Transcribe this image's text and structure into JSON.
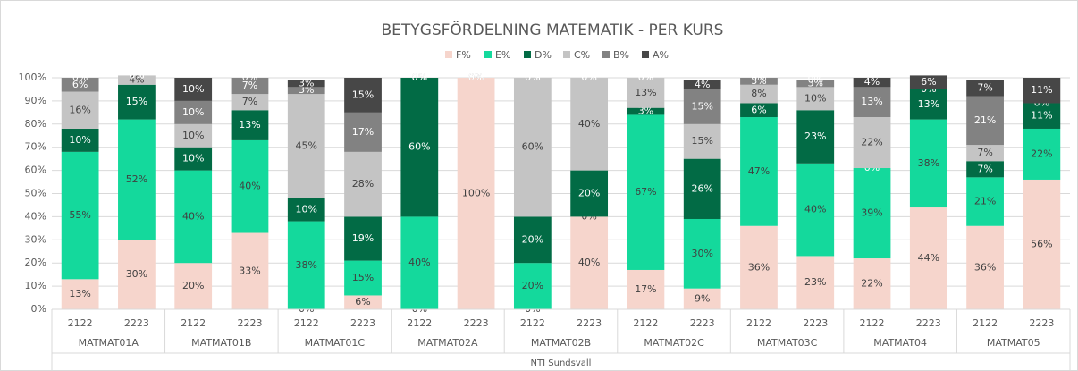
{
  "chart_data": {
    "type": "stacked_bar_100",
    "title": "BETYGSFÖRDELNING MATEMATIK - PER KURS",
    "categories": [
      "2122",
      "2223",
      "2122",
      "2223",
      "2122",
      "2223",
      "2122",
      "2223",
      "2122",
      "2223",
      "2122",
      "2223",
      "2122",
      "2223",
      "2122",
      "2223",
      "2122",
      "2223"
    ],
    "groups": [
      "MATMAT01A",
      "MATMAT01B",
      "MATMAT01C",
      "MATMAT02A",
      "MATMAT02B",
      "MATMAT02C",
      "MATMAT03C",
      "MATMAT04",
      "MATMAT05"
    ],
    "supergroup": "NTI Sundsvall",
    "ylim": [
      0,
      100
    ],
    "yticks": [
      {
        "value": 0,
        "label": "0%"
      },
      {
        "value": 10,
        "label": "10%"
      },
      {
        "value": 20,
        "label": "20%"
      },
      {
        "value": 30,
        "label": "30%"
      },
      {
        "value": 40,
        "label": "40%"
      },
      {
        "value": 50,
        "label": "50%"
      },
      {
        "value": 60,
        "label": "60%"
      },
      {
        "value": 70,
        "label": "70%"
      },
      {
        "value": 80,
        "label": "80%"
      },
      {
        "value": 90,
        "label": "90%"
      },
      {
        "value": 100,
        "label": "100%"
      }
    ],
    "grid": true,
    "legend": "top",
    "series": [
      {
        "name": "F%",
        "color": "#f6d5cc",
        "values": [
          13,
          30,
          20,
          33,
          0,
          6,
          0,
          100,
          0,
          40,
          17,
          9,
          36,
          23,
          22,
          44,
          36,
          56
        ],
        "value_labels": [
          "13%",
          "30%",
          "20%",
          "33%",
          "0%",
          "6%",
          "0%",
          "100%",
          "0%",
          "40%",
          "17%",
          "9%",
          "36%",
          "23%",
          "22%",
          "44%",
          "36%",
          "56%"
        ]
      },
      {
        "name": "E%",
        "color": "#14d99c",
        "values": [
          55,
          52,
          40,
          40,
          38,
          15,
          40,
          0,
          20,
          0,
          67,
          30,
          47,
          40,
          39,
          38,
          21,
          22
        ],
        "value_labels": [
          "55%",
          "52%",
          "40%",
          "40%",
          "38%",
          "15%",
          "40%",
          "0%",
          "20%",
          "0%",
          "67%",
          "30%",
          "47%",
          "40%",
          "39%",
          "38%",
          "21%",
          "22%"
        ]
      },
      {
        "name": "D%",
        "color": "#026b45",
        "values": [
          10,
          15,
          10,
          13,
          10,
          19,
          60,
          0,
          20,
          20,
          3,
          26,
          6,
          23,
          0,
          13,
          7,
          11
        ],
        "value_labels": [
          "10%",
          "15%",
          "10%",
          "13%",
          "10%",
          "19%",
          "60%",
          "0%",
          "20%",
          "20%",
          "3%",
          "26%",
          "6%",
          "23%",
          "0%",
          "13%",
          "7%",
          "11%"
        ]
      },
      {
        "name": "C%",
        "color": "#c4c4c4",
        "values": [
          16,
          4,
          10,
          7,
          45,
          28,
          0,
          0,
          60,
          40,
          13,
          15,
          8,
          10,
          22,
          0,
          7,
          0
        ],
        "value_labels": [
          "16%",
          "4%",
          "10%",
          "7%",
          "45%",
          "28%",
          "0%",
          "0%",
          "60%",
          "40%",
          "13%",
          "15%",
          "8%",
          "10%",
          "22%",
          "0%",
          "7%",
          "0%"
        ]
      },
      {
        "name": "B%",
        "color": "#828282",
        "values": [
          6,
          0,
          10,
          7,
          3,
          17,
          0,
          0,
          0,
          0,
          0,
          15,
          3,
          3,
          13,
          0,
          21,
          0
        ],
        "value_labels": [
          "6%",
          "0%",
          "10%",
          "7%",
          "3%",
          "17%",
          "0%",
          "0%",
          "0%",
          "0%",
          "0%",
          "15%",
          "3%",
          "3%",
          "13%",
          "0%",
          "21%",
          "0%"
        ]
      },
      {
        "name": "A%",
        "color": "#474747",
        "values": [
          0,
          0,
          10,
          0,
          3,
          15,
          0,
          0,
          0,
          0,
          0,
          4,
          0,
          0,
          4,
          6,
          7,
          11
        ],
        "value_labels": [
          "0%",
          "0%",
          "10%",
          "0%",
          "3%",
          "15%",
          "0%",
          "0%",
          "0%",
          "0%",
          "0%",
          "4%",
          "0%",
          "0%",
          "4%",
          "6%",
          "7%",
          "11%"
        ]
      }
    ]
  }
}
